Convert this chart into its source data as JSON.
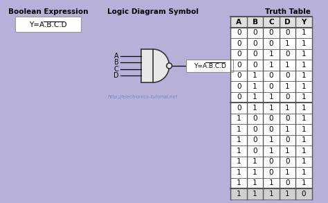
{
  "background_color": "#b8b0d8",
  "title_bool_expr": "Boolean Expression",
  "title_logic": "Logic Diagram Symbol",
  "title_truth": "Truth Table",
  "gate_inputs": [
    "A",
    "B",
    "C",
    "D"
  ],
  "watermark": "http://electronics-tutorial.net",
  "truth_table_headers": [
    "A",
    "B",
    "C",
    "D",
    "Y"
  ],
  "truth_table_rows": [
    [
      0,
      0,
      0,
      0,
      1
    ],
    [
      0,
      0,
      0,
      1,
      1
    ],
    [
      0,
      0,
      1,
      0,
      1
    ],
    [
      0,
      0,
      1,
      1,
      1
    ],
    [
      0,
      1,
      0,
      0,
      1
    ],
    [
      0,
      1,
      0,
      1,
      1
    ],
    [
      0,
      1,
      1,
      0,
      1
    ],
    [
      0,
      1,
      1,
      1,
      1
    ],
    [
      1,
      0,
      0,
      0,
      1
    ],
    [
      1,
      0,
      0,
      1,
      1
    ],
    [
      1,
      0,
      1,
      0,
      1
    ],
    [
      1,
      0,
      1,
      1,
      1
    ],
    [
      1,
      1,
      0,
      0,
      1
    ],
    [
      1,
      1,
      0,
      1,
      1
    ],
    [
      1,
      1,
      1,
      0,
      1
    ],
    [
      1,
      1,
      1,
      1,
      0
    ]
  ],
  "text_color": "#000000",
  "box_bg": "#ffffff",
  "gate_body_color": "#e8e8e8",
  "gate_edge_color": "#333333",
  "wire_color": "#000000",
  "table_border_color": "#555555",
  "last_row_shade": "#d0d0d0",
  "thick_border_rows": [
    0,
    1,
    8,
    16
  ]
}
